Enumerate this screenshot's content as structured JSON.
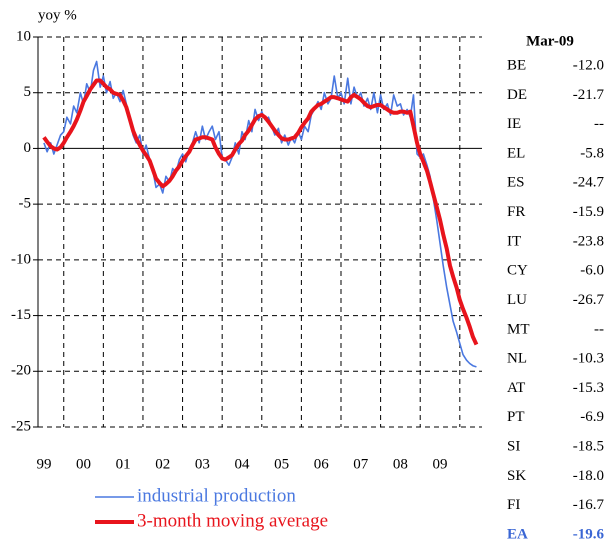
{
  "chart_data": {
    "type": "line",
    "y_label": "yoy %",
    "x": [
      1999.0,
      1999.08,
      1999.17,
      1999.25,
      1999.33,
      1999.42,
      1999.5,
      1999.58,
      1999.67,
      1999.75,
      1999.83,
      1999.92,
      2000.0,
      2000.08,
      2000.17,
      2000.25,
      2000.33,
      2000.42,
      2000.5,
      2000.58,
      2000.67,
      2000.75,
      2000.83,
      2000.92,
      2001.0,
      2001.08,
      2001.17,
      2001.25,
      2001.33,
      2001.42,
      2001.5,
      2001.58,
      2001.67,
      2001.75,
      2001.83,
      2001.92,
      2002.0,
      2002.08,
      2002.17,
      2002.25,
      2002.33,
      2002.42,
      2002.5,
      2002.58,
      2002.67,
      2002.75,
      2002.83,
      2002.92,
      2003.0,
      2003.08,
      2003.17,
      2003.25,
      2003.33,
      2003.42,
      2003.5,
      2003.58,
      2003.67,
      2003.75,
      2003.83,
      2003.92,
      2004.0,
      2004.08,
      2004.17,
      2004.25,
      2004.33,
      2004.42,
      2004.5,
      2004.58,
      2004.67,
      2004.75,
      2004.83,
      2004.92,
      2005.0,
      2005.08,
      2005.17,
      2005.25,
      2005.33,
      2005.42,
      2005.5,
      2005.58,
      2005.67,
      2005.75,
      2005.83,
      2005.92,
      2006.0,
      2006.08,
      2006.17,
      2006.25,
      2006.33,
      2006.42,
      2006.5,
      2006.58,
      2006.67,
      2006.75,
      2006.83,
      2006.92,
      2007.0,
      2007.08,
      2007.17,
      2007.25,
      2007.33,
      2007.42,
      2007.5,
      2007.58,
      2007.67,
      2007.75,
      2007.83,
      2007.92,
      2008.0,
      2008.08,
      2008.17,
      2008.25,
      2008.33,
      2008.42,
      2008.5,
      2008.58,
      2008.67,
      2008.75,
      2008.83,
      2008.92,
      2009.0,
      2009.08,
      2009.17,
      2009.25,
      2009.33,
      2009.42,
      2009.5,
      2009.58,
      2009.67,
      2009.75,
      2009.83,
      2009.92
    ],
    "series": [
      {
        "name": "industrial production",
        "color": "#4a78e0",
        "width": 1.6,
        "values": [
          0.5,
          -0.3,
          0.5,
          -0.5,
          0.3,
          1.2,
          1.5,
          2.8,
          2.2,
          3.8,
          3.2,
          5.0,
          4.0,
          5.8,
          5.0,
          7.0,
          7.8,
          5.5,
          6.5,
          5.0,
          6.0,
          4.5,
          5.0,
          4.2,
          5.2,
          4.0,
          2.5,
          1.2,
          0.5,
          1.2,
          -0.5,
          0.3,
          -1.0,
          -2.0,
          -3.5,
          -3.2,
          -4.0,
          -2.5,
          -3.0,
          -1.8,
          -2.2,
          -1.0,
          -0.5,
          -1.2,
          0.0,
          0.5,
          1.5,
          0.5,
          2.0,
          0.8,
          1.5,
          2.0,
          0.8,
          1.5,
          -0.8,
          -1.0,
          -1.5,
          -0.8,
          0.5,
          -0.5,
          1.5,
          0.8,
          2.5,
          1.5,
          3.5,
          2.5,
          3.3,
          2.6,
          2.8,
          2.0,
          1.2,
          1.8,
          0.5,
          1.2,
          0.3,
          1.0,
          0.5,
          1.5,
          0.8,
          2.0,
          1.5,
          3.0,
          3.5,
          4.2,
          3.5,
          5.0,
          4.0,
          4.5,
          6.5,
          4.5,
          5.0,
          4.0,
          6.3,
          4.0,
          5.5,
          4.5,
          5.0,
          3.8,
          4.5,
          3.5,
          5.0,
          3.2,
          4.8,
          3.5,
          4.0,
          3.0,
          4.8,
          3.8,
          4.0,
          3.0,
          3.5,
          2.8,
          4.8,
          -0.5,
          -0.8,
          -0.5,
          -1.5,
          -2.5,
          -4.5,
          -6.5,
          -8.5,
          -10.5,
          -12.5,
          -14.0,
          -15.5,
          -16.5,
          -17.5,
          -18.5,
          -19.0,
          -19.3,
          -19.5,
          -19.6
        ]
      },
      {
        "name": "3-month moving average",
        "color": "#e8141c",
        "width": 4,
        "values": [
          1.0,
          0.6,
          0.2,
          0.0,
          -0.1,
          0.1,
          0.5,
          1.0,
          1.5,
          2.0,
          2.6,
          3.4,
          4.2,
          4.7,
          5.3,
          5.7,
          6.1,
          6.1,
          5.8,
          5.5,
          5.3,
          5.0,
          4.9,
          4.8,
          4.3,
          3.7,
          2.6,
          1.6,
          0.9,
          0.3,
          -0.2,
          -0.6,
          -1.1,
          -1.9,
          -2.7,
          -3.1,
          -3.4,
          -3.2,
          -2.9,
          -2.5,
          -2.0,
          -1.6,
          -1.1,
          -0.7,
          -0.3,
          0.3,
          0.8,
          0.9,
          1.0,
          1.0,
          0.9,
          0.8,
          0.1,
          -0.5,
          -0.9,
          -1.0,
          -0.8,
          -0.6,
          -0.1,
          0.4,
          0.7,
          1.2,
          1.6,
          2.1,
          2.6,
          2.9,
          3.0,
          2.8,
          2.4,
          2.0,
          1.6,
          1.2,
          0.9,
          0.8,
          0.8,
          0.9,
          1.0,
          1.4,
          1.9,
          2.3,
          2.7,
          3.3,
          3.6,
          3.9,
          4.0,
          4.2,
          4.4,
          4.6,
          4.6,
          4.5,
          4.4,
          4.3,
          4.2,
          4.6,
          4.8,
          4.6,
          4.4,
          4.1,
          3.8,
          3.7,
          3.8,
          3.9,
          3.9,
          3.7,
          3.5,
          3.3,
          3.2,
          3.2,
          3.3,
          3.3,
          3.2,
          3.3,
          2.0,
          0.5,
          -0.5,
          -1.2,
          -2.0,
          -3.0,
          -4.1,
          -5.3,
          -6.4,
          -7.7,
          -9.0,
          -10.5,
          -11.5,
          -12.5,
          -13.6,
          -14.4,
          -15.2,
          -16.0,
          -16.9,
          -17.6
        ]
      }
    ],
    "xlim": [
      1998.85,
      2010.06
    ],
    "xticks": [
      {
        "value": 1999,
        "label": "99"
      },
      {
        "value": 2000,
        "label": "00"
      },
      {
        "value": 2001,
        "label": "01"
      },
      {
        "value": 2002,
        "label": "02"
      },
      {
        "value": 2003,
        "label": "03"
      },
      {
        "value": 2004,
        "label": "04"
      },
      {
        "value": 2005,
        "label": "05"
      },
      {
        "value": 2006,
        "label": "06"
      },
      {
        "value": 2007,
        "label": "07"
      },
      {
        "value": 2008,
        "label": "08"
      },
      {
        "value": 2009,
        "label": "09"
      }
    ],
    "xgrid": [
      1999.5,
      2000.5,
      2001.5,
      2002.5,
      2003.5,
      2004.5,
      2005.5,
      2006.5,
      2007.5,
      2008.5,
      2009.5
    ],
    "ylim": [
      -25,
      10
    ],
    "yticks": [
      10,
      5,
      0,
      -5,
      -10,
      -15,
      -20,
      -25
    ],
    "grid": true
  },
  "table": {
    "header": "Mar-09",
    "rows": [
      [
        "BE",
        "-12.0"
      ],
      [
        "DE",
        "-21.7"
      ],
      [
        "IE",
        "--"
      ],
      [
        "EL",
        "-5.8"
      ],
      [
        "ES",
        "-24.7"
      ],
      [
        "FR",
        "-15.9"
      ],
      [
        "IT",
        "-23.8"
      ],
      [
        "CY",
        "-6.0"
      ],
      [
        "LU",
        "-26.7"
      ],
      [
        "MT",
        "--"
      ],
      [
        "NL",
        "-10.3"
      ],
      [
        "AT",
        "-15.3"
      ],
      [
        "PT",
        "-6.9"
      ],
      [
        "SI",
        "-18.5"
      ],
      [
        "SK",
        "-18.0"
      ],
      [
        "FI",
        "-16.7"
      ],
      [
        "EA",
        "-19.6"
      ]
    ]
  }
}
